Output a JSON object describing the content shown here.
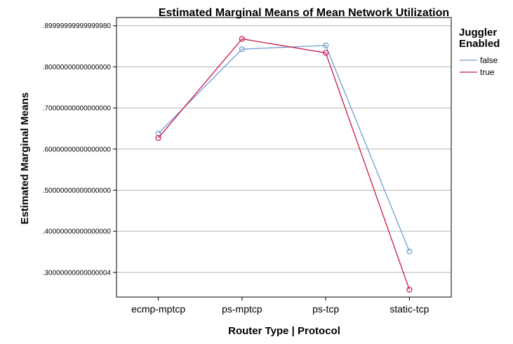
{
  "chart_data": {
    "type": "line",
    "title": "Estimated Marginal Means of Mean Network Utilization",
    "xlabel": "Router Type | Protocol",
    "ylabel": "Estimated Marginal Means",
    "categories": [
      "ecmp-mptcp",
      "ps-mptcp",
      "ps-tcp",
      "static-tcp"
    ],
    "ylim": [
      0.24,
      0.92
    ],
    "yticks": [
      0.3,
      0.4,
      0.5,
      0.6,
      0.7,
      0.8,
      0.9
    ],
    "ytick_labels": [
      ".30000000000000004",
      ".40000000000000000",
      ".50000000000000000",
      ".60000000000000000",
      ".70000000000000000",
      ".80000000000000000",
      ".89999999999999980"
    ],
    "grid": true,
    "legend": {
      "title": "Juggler Enabled",
      "title_lines": [
        "Juggler",
        "Enabled"
      ],
      "placement": "right"
    },
    "series": [
      {
        "name": "false",
        "color": "#6fa0cf",
        "values": [
          0.638,
          0.843,
          0.852,
          0.351
        ]
      },
      {
        "name": "true",
        "color": "#c8174c",
        "values": [
          0.627,
          0.868,
          0.834,
          0.258
        ]
      }
    ]
  }
}
